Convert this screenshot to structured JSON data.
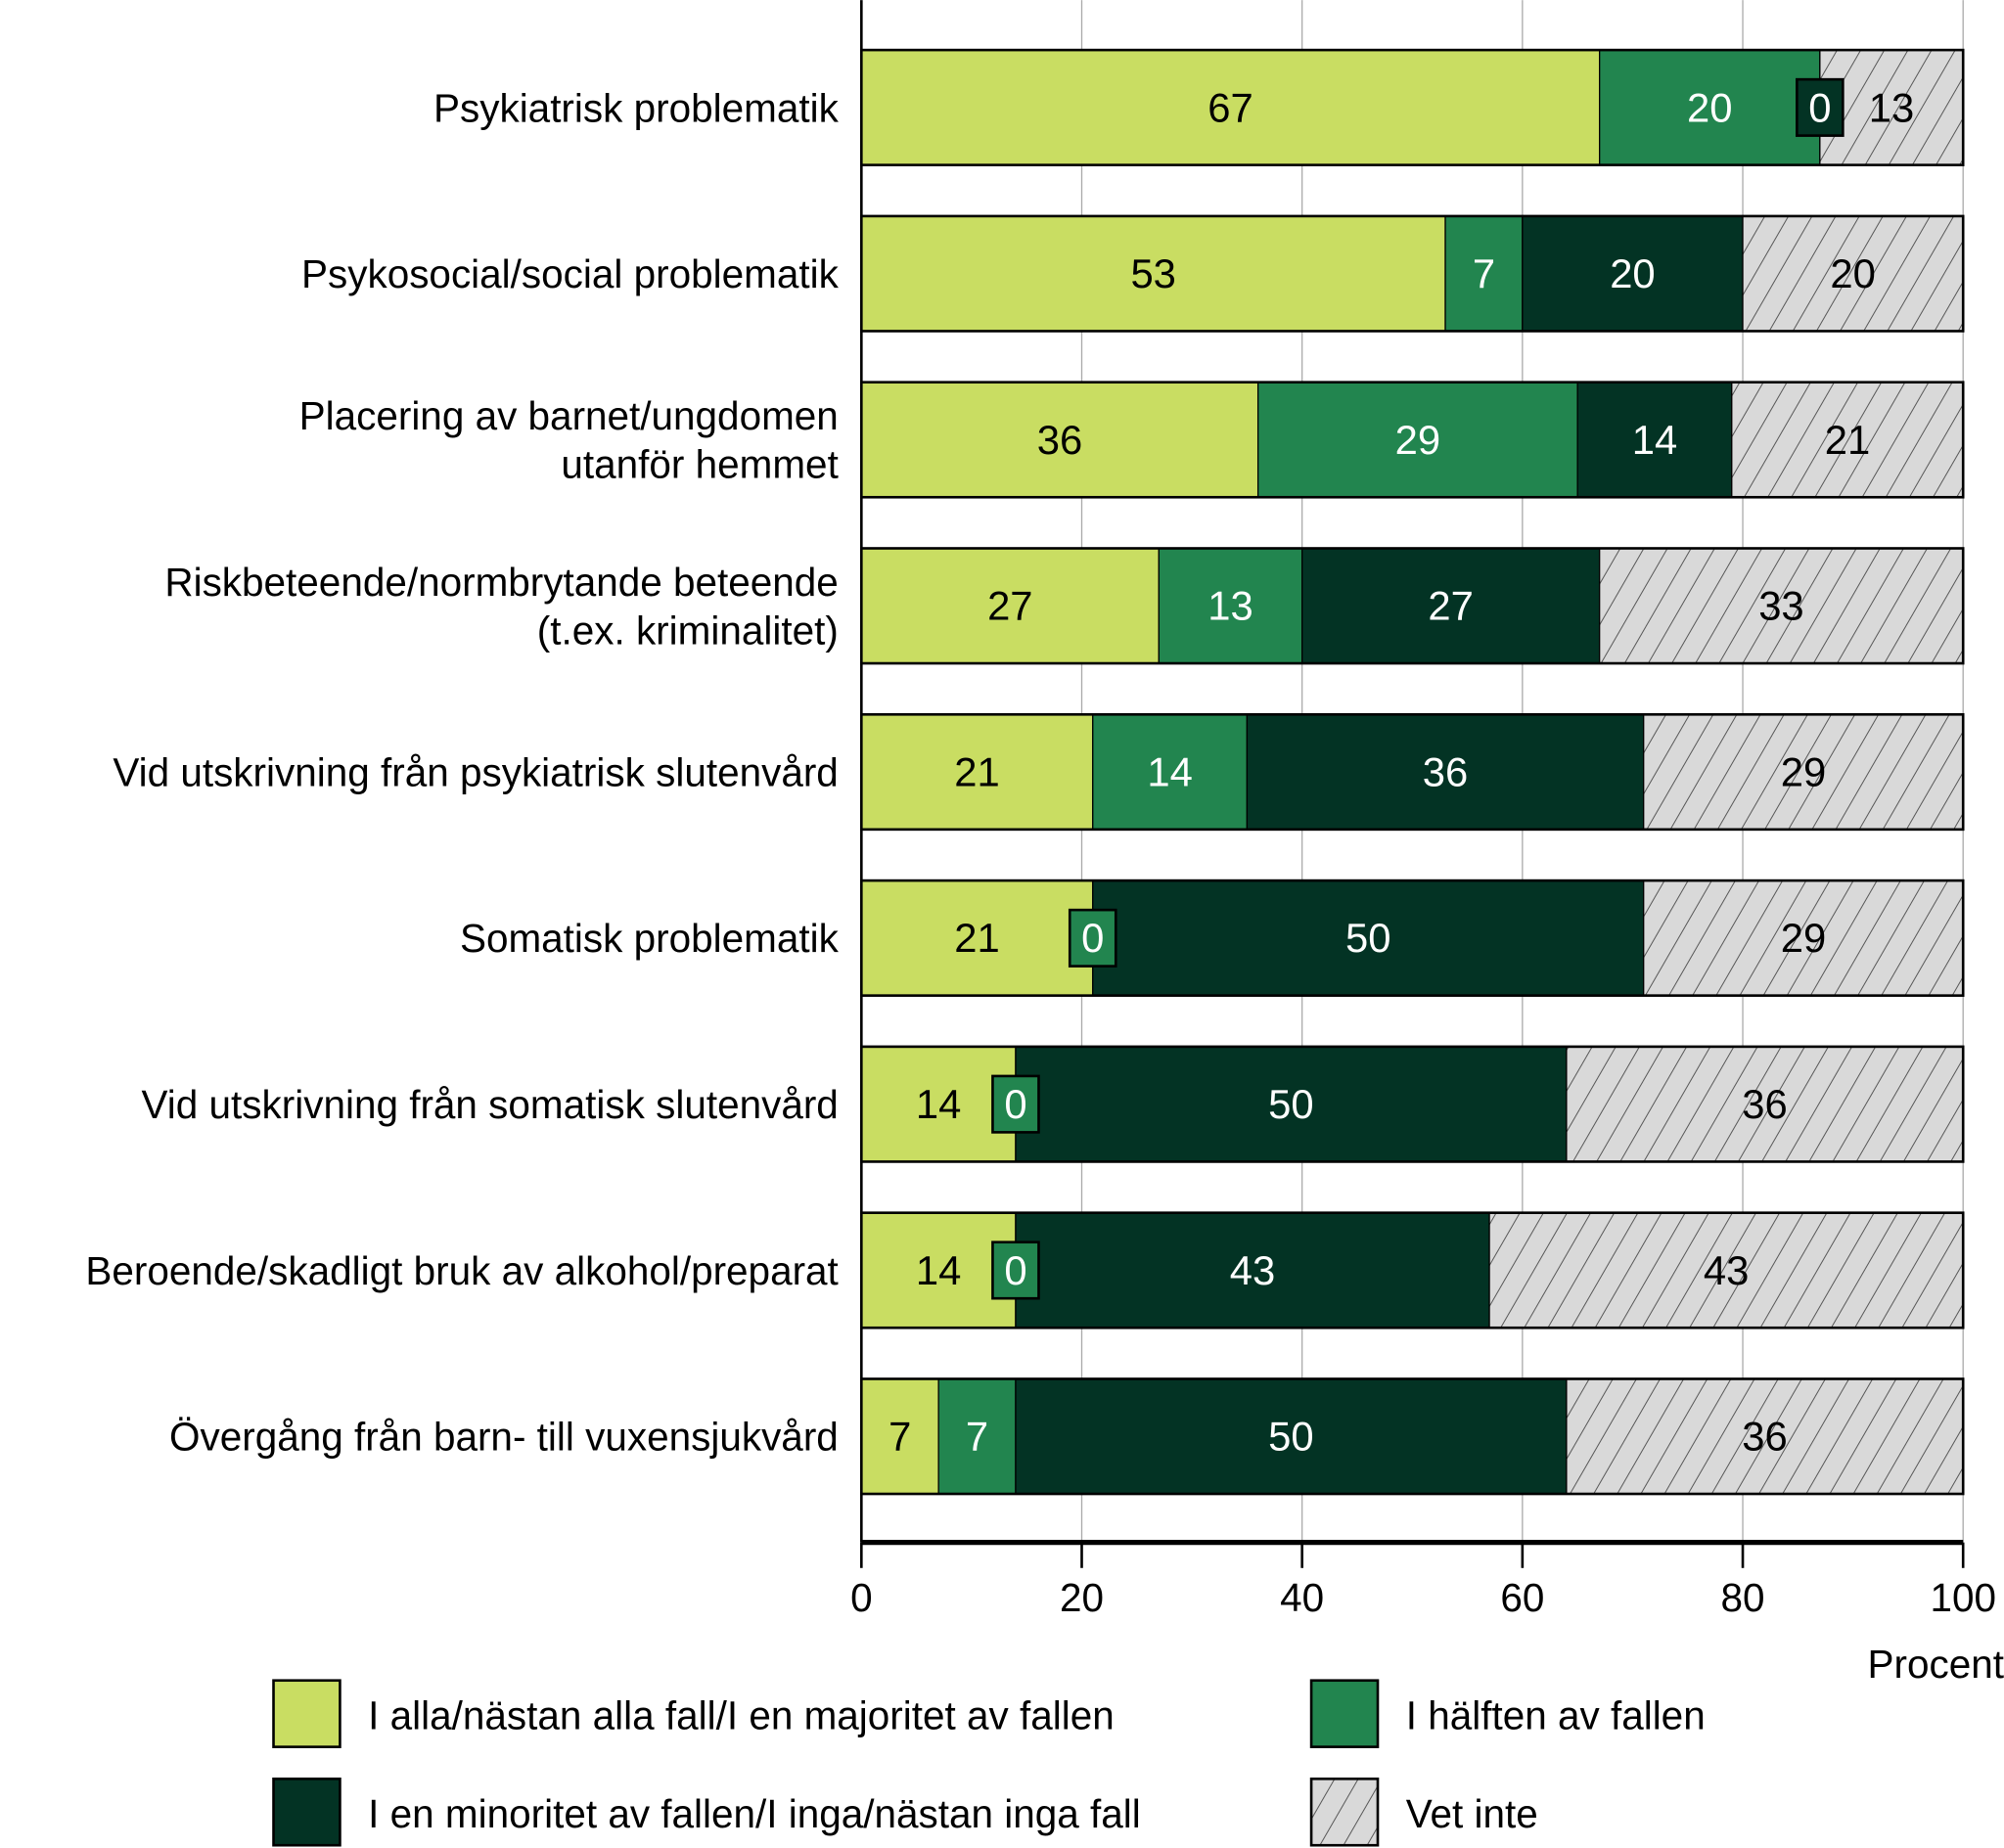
{
  "chart_data": {
    "type": "bar",
    "orientation": "horizontal",
    "stacked": true,
    "categories": [
      [
        "Psykiatrisk problematik"
      ],
      [
        "Psykosocial/social problematik"
      ],
      [
        "Placering av barnet/ungdomen",
        "utanför hemmet"
      ],
      [
        "Riskbeteende/normbrytande beteende",
        "(t.ex. kriminalitet)"
      ],
      [
        "Vid utskrivning från psykiatrisk slutenvård"
      ],
      [
        "Somatisk problematik"
      ],
      [
        "Vid utskrivning från somatisk slutenvård"
      ],
      [
        "Beroende/skadligt bruk av alkohol/preparat"
      ],
      [
        "Övergång från barn- till vuxensjukvård"
      ]
    ],
    "series": [
      {
        "name": "I alla/nästan alla fall/I en majoritet av fallen",
        "color": "#c9dd62",
        "text_color": "#000000",
        "values": [
          67,
          53,
          36,
          27,
          21,
          21,
          14,
          14,
          7
        ]
      },
      {
        "name": "I hälften av fallen",
        "color": "#22854f",
        "text_color": "#ffffff",
        "values": [
          20,
          7,
          29,
          13,
          14,
          0,
          0,
          0,
          7
        ]
      },
      {
        "name": "I en minoritet av fallen/I inga/nästan inga fall",
        "color": "#033324",
        "text_color": "#ffffff",
        "values": [
          0,
          20,
          14,
          27,
          36,
          50,
          50,
          43,
          50
        ]
      },
      {
        "name": "Vet inte",
        "color": "#d9d9d9",
        "pattern": "hatched",
        "text_color": "#000000",
        "values": [
          13,
          20,
          21,
          33,
          29,
          29,
          36,
          43,
          36
        ]
      }
    ],
    "xlabel": "Procent",
    "xlim": [
      0,
      100
    ],
    "xticks": [
      "0",
      "20",
      "40",
      "60",
      "80",
      "100"
    ],
    "grid": "vertical",
    "legend": "bottom"
  }
}
